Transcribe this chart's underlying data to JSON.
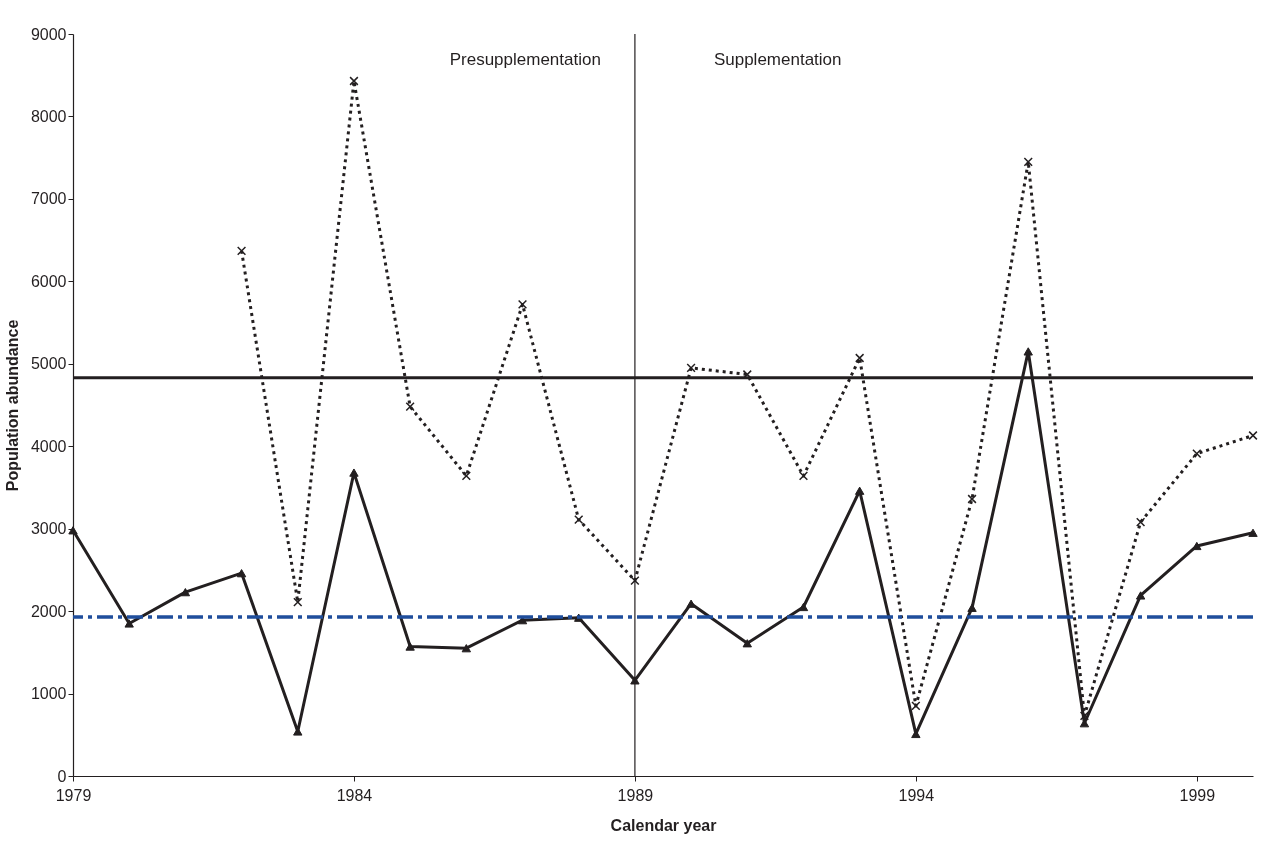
{
  "chart_data": {
    "type": "line",
    "xlabel": "Calendar year",
    "ylabel": "Population abundance",
    "x": [
      1979,
      1980,
      1981,
      1982,
      1983,
      1984,
      1985,
      1986,
      1987,
      1988,
      1989,
      1990,
      1991,
      1992,
      1993,
      1994,
      1995,
      1996,
      1997,
      1998,
      1999,
      2000
    ],
    "series": [
      {
        "color": "#231f20",
        "marker": "triangle",
        "line_style": "solid",
        "values": [
          2980,
          1850,
          2230,
          2460,
          540,
          3680,
          1570,
          1550,
          1890,
          1920,
          1160,
          2090,
          1610,
          2050,
          3460,
          510,
          2040,
          5150,
          640,
          2190,
          2790,
          2950
        ]
      },
      {
        "color": "#231f20",
        "marker": "cross",
        "line_style": "dotted",
        "x": [
          1982,
          1983,
          1984,
          1985,
          1986,
          1987,
          1988,
          1989,
          1990,
          1991,
          1992,
          1993,
          1994,
          1995,
          1996,
          1997,
          1998,
          1999,
          2000
        ],
        "values": [
          6370,
          2110,
          8430,
          4480,
          3640,
          5720,
          3110,
          2370,
          4950,
          4870,
          3640,
          5070,
          850,
          3360,
          7450,
          730,
          3080,
          3910,
          4130
        ]
      }
    ],
    "xlim": [
      1979,
      2000
    ],
    "xticks": [
      1979,
      1984,
      1989,
      1994,
      1999
    ],
    "ylim": [
      0,
      9000
    ],
    "yticks": [
      0,
      1000,
      2000,
      3000,
      4000,
      5000,
      6000,
      7000,
      8000,
      9000
    ],
    "ref_lines": [
      {
        "axis": "y",
        "value": 4830,
        "color": "#231f20",
        "line_style": "solid"
      },
      {
        "axis": "y",
        "value": 1930,
        "color": "#1f4e9c",
        "line_style": "dashdot"
      },
      {
        "axis": "x",
        "value": 1989,
        "color": "#231f20",
        "line_style": "solid"
      }
    ],
    "annotations": [
      "Presupplementation",
      "Supplementation"
    ],
    "grid": false
  }
}
